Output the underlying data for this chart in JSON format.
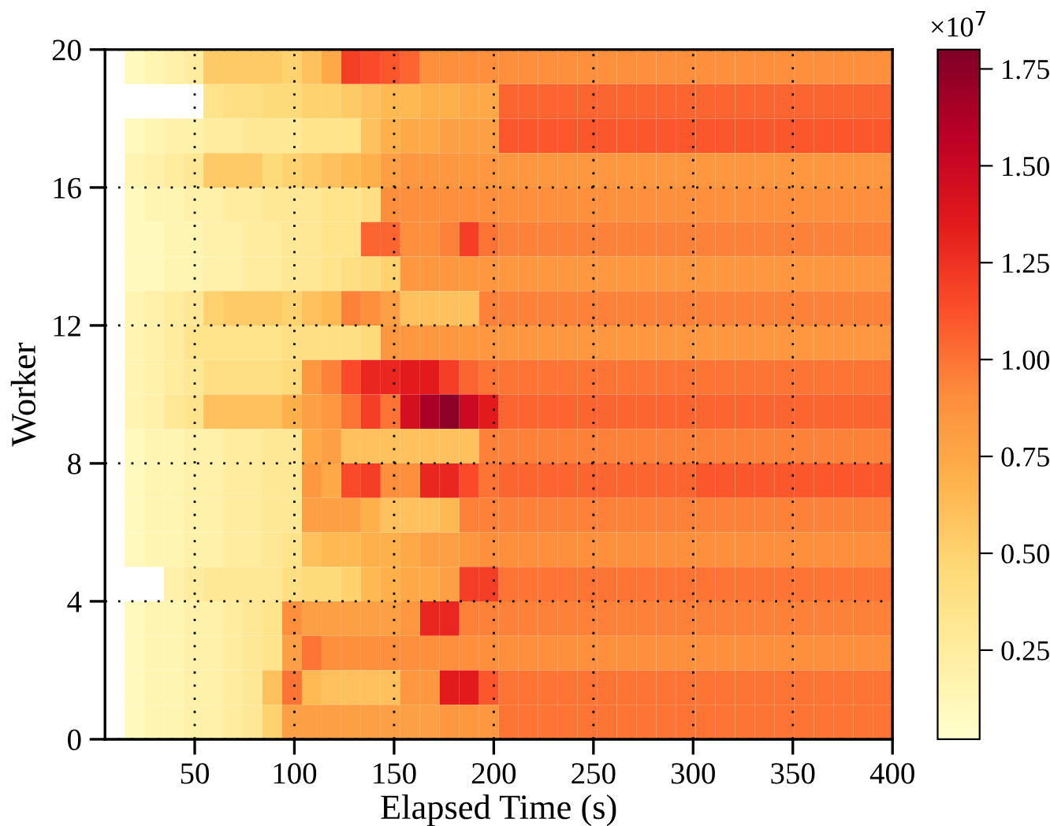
{
  "chart_data": {
    "type": "heatmap",
    "xlabel": "Elapsed Time (s)",
    "ylabel": "Worker",
    "clabel": "×10$^{7}$",
    "xlim": [
      5,
      400
    ],
    "xticks": [
      50,
      100,
      150,
      200,
      250,
      300,
      350,
      400
    ],
    "ylim": [
      0,
      20
    ],
    "yticks": [
      0,
      4,
      8,
      12,
      16,
      20
    ],
    "clim": [
      0.02,
      1.8
    ],
    "cticks": [
      0.25,
      {
        "value": 0.5,
        "label": "0.50"
      },
      0.75,
      {
        "value": 1.0,
        "label": "1.00"
      },
      1.25,
      {
        "value": 1.5,
        "label": "1.50"
      },
      1.75
    ],
    "grid": true,
    "cells": [
      [
        null,
        0.1,
        0.15,
        0.2,
        0.25,
        0.55,
        0.55,
        0.55,
        0.55,
        0.5,
        0.6,
        0.75,
        1.2,
        1.15,
        1.1,
        1.05,
        0.9,
        0.9,
        0.9,
        0.9,
        0.9,
        0.9,
        0.9,
        0.9,
        0.9,
        0.9,
        0.9,
        0.9,
        0.9,
        0.9,
        0.9,
        0.9,
        0.9,
        0.9,
        0.9,
        0.9,
        0.9,
        0.9,
        0.9,
        0.9
      ],
      [
        null,
        null,
        null,
        null,
        null,
        0.35,
        0.4,
        0.4,
        0.45,
        0.45,
        0.5,
        0.5,
        0.55,
        0.6,
        0.65,
        0.65,
        0.7,
        0.7,
        0.75,
        0.75,
        1.05,
        1.05,
        1.05,
        1.05,
        1.05,
        1.05,
        1.05,
        1.05,
        1.05,
        1.05,
        1.05,
        1.05,
        1.05,
        1.05,
        1.05,
        1.05,
        1.05,
        1.05,
        1.05,
        1.05
      ],
      [
        null,
        0.1,
        0.15,
        0.2,
        0.2,
        0.25,
        0.25,
        0.3,
        0.3,
        0.3,
        0.35,
        0.35,
        0.35,
        0.6,
        0.7,
        0.75,
        0.75,
        0.8,
        0.8,
        0.8,
        1.1,
        1.1,
        1.1,
        1.1,
        1.1,
        1.1,
        1.1,
        1.1,
        1.1,
        1.1,
        1.1,
        1.1,
        1.1,
        1.1,
        1.1,
        1.1,
        1.1,
        1.1,
        1.1,
        1.1
      ],
      [
        null,
        0.15,
        0.2,
        0.25,
        0.3,
        0.55,
        0.55,
        0.55,
        0.45,
        0.5,
        0.55,
        0.6,
        0.65,
        0.7,
        0.8,
        0.85,
        0.85,
        0.85,
        0.85,
        0.85,
        0.85,
        0.85,
        0.85,
        0.85,
        0.85,
        0.85,
        0.85,
        0.85,
        0.85,
        0.85,
        0.85,
        0.85,
        0.85,
        0.85,
        0.85,
        0.85,
        0.85,
        0.85,
        0.85,
        0.85
      ],
      [
        null,
        0.1,
        0.15,
        0.15,
        0.2,
        0.2,
        0.25,
        0.25,
        0.3,
        0.3,
        0.3,
        0.35,
        0.35,
        0.4,
        0.9,
        0.9,
        0.9,
        0.9,
        0.9,
        0.9,
        0.9,
        0.9,
        0.9,
        0.9,
        0.9,
        0.9,
        0.9,
        0.9,
        0.9,
        0.9,
        0.9,
        0.9,
        0.9,
        0.9,
        0.9,
        0.9,
        0.9,
        0.9,
        0.9,
        0.9
      ],
      [
        null,
        0.1,
        0.1,
        0.15,
        0.15,
        0.2,
        0.2,
        0.25,
        0.25,
        0.3,
        0.3,
        0.35,
        0.35,
        1.05,
        1.05,
        0.9,
        0.9,
        0.95,
        1.2,
        1.0,
        0.95,
        0.95,
        0.95,
        0.95,
        0.95,
        0.95,
        0.95,
        0.95,
        0.95,
        0.95,
        0.95,
        0.95,
        0.95,
        0.95,
        0.95,
        0.95,
        0.95,
        0.95,
        0.95,
        0.95
      ],
      [
        null,
        0.1,
        0.1,
        0.15,
        0.15,
        0.2,
        0.2,
        0.25,
        0.25,
        0.3,
        0.3,
        0.35,
        0.4,
        0.45,
        0.5,
        0.85,
        0.85,
        0.85,
        0.85,
        0.85,
        0.85,
        0.85,
        0.85,
        0.85,
        0.85,
        0.85,
        0.85,
        0.85,
        0.85,
        0.85,
        0.85,
        0.85,
        0.85,
        0.85,
        0.85,
        0.85,
        0.85,
        0.85,
        0.85,
        0.85
      ],
      [
        null,
        0.15,
        0.2,
        0.25,
        0.3,
        0.5,
        0.55,
        0.55,
        0.55,
        0.5,
        0.6,
        0.65,
        0.95,
        0.9,
        0.8,
        0.6,
        0.6,
        0.6,
        0.6,
        0.95,
        0.95,
        0.95,
        0.95,
        0.95,
        0.95,
        0.95,
        0.95,
        0.95,
        0.95,
        0.95,
        0.95,
        0.95,
        0.95,
        0.95,
        0.95,
        0.95,
        0.95,
        0.95,
        0.95,
        0.95
      ],
      [
        null,
        0.15,
        0.2,
        0.25,
        0.35,
        0.35,
        0.35,
        0.35,
        0.35,
        0.4,
        0.4,
        0.4,
        0.4,
        0.45,
        0.85,
        0.85,
        0.85,
        0.85,
        0.85,
        0.85,
        0.85,
        0.85,
        0.85,
        0.85,
        0.85,
        0.85,
        0.85,
        0.85,
        0.85,
        0.85,
        0.85,
        0.85,
        0.85,
        0.85,
        0.85,
        0.85,
        0.85,
        0.85,
        0.85,
        0.85
      ],
      [
        null,
        0.15,
        0.2,
        0.25,
        0.3,
        0.4,
        0.4,
        0.4,
        0.4,
        0.45,
        0.85,
        0.95,
        1.15,
        1.3,
        1.3,
        1.35,
        1.35,
        1.2,
        1.05,
        1.0,
        1.0,
        1.0,
        1.0,
        1.0,
        1.0,
        1.0,
        1.0,
        1.0,
        1.0,
        1.0,
        1.0,
        1.0,
        1.0,
        1.0,
        1.0,
        1.0,
        1.0,
        1.0,
        1.0,
        1.0
      ],
      [
        null,
        0.15,
        0.2,
        0.3,
        0.35,
        0.6,
        0.6,
        0.6,
        0.6,
        0.7,
        0.8,
        0.85,
        1.0,
        1.2,
        1.0,
        1.45,
        1.65,
        1.75,
        1.5,
        1.35,
        1.05,
        1.05,
        1.05,
        1.05,
        1.05,
        1.05,
        1.05,
        1.05,
        1.05,
        1.05,
        1.05,
        1.05,
        1.05,
        1.05,
        1.05,
        1.05,
        1.05,
        1.05,
        1.05,
        1.05
      ],
      [
        null,
        0.1,
        0.15,
        0.15,
        0.2,
        0.2,
        0.25,
        0.25,
        0.3,
        0.3,
        0.75,
        0.8,
        0.6,
        0.6,
        0.6,
        0.6,
        0.6,
        0.6,
        0.6,
        0.95,
        0.95,
        0.95,
        0.95,
        0.95,
        0.95,
        0.95,
        0.95,
        0.95,
        0.95,
        0.95,
        0.95,
        0.95,
        0.95,
        0.95,
        0.95,
        0.95,
        0.95,
        0.95,
        0.95,
        0.95
      ],
      [
        null,
        0.1,
        0.15,
        0.15,
        0.2,
        0.2,
        0.25,
        0.25,
        0.3,
        0.3,
        0.85,
        0.75,
        1.15,
        1.2,
        0.9,
        0.9,
        1.3,
        1.3,
        1.15,
        1.0,
        1.05,
        1.05,
        1.05,
        1.05,
        1.05,
        1.05,
        1.05,
        1.05,
        1.05,
        1.05,
        1.1,
        1.1,
        1.1,
        1.1,
        1.1,
        1.1,
        1.1,
        1.1,
        1.1,
        1.1
      ],
      [
        null,
        0.1,
        0.15,
        0.15,
        0.2,
        0.2,
        0.25,
        0.25,
        0.3,
        0.3,
        0.8,
        0.8,
        0.8,
        0.7,
        0.6,
        0.6,
        0.6,
        0.65,
        0.95,
        0.95,
        0.95,
        0.95,
        0.95,
        0.95,
        0.95,
        0.95,
        0.95,
        0.95,
        0.95,
        0.95,
        0.95,
        0.95,
        0.95,
        0.95,
        0.95,
        0.95,
        0.95,
        0.95,
        0.95,
        0.95
      ],
      [
        null,
        0.1,
        0.15,
        0.15,
        0.2,
        0.2,
        0.25,
        0.25,
        0.3,
        0.35,
        0.6,
        0.65,
        0.65,
        0.7,
        0.7,
        0.75,
        0.8,
        0.8,
        0.85,
        0.9,
        0.9,
        0.9,
        0.9,
        0.9,
        0.9,
        0.9,
        0.9,
        0.9,
        0.9,
        0.9,
        0.9,
        0.9,
        0.9,
        0.9,
        0.9,
        0.9,
        0.9,
        0.9,
        0.9,
        0.9
      ],
      [
        null,
        null,
        null,
        0.2,
        0.25,
        0.3,
        0.3,
        0.3,
        0.3,
        0.4,
        0.45,
        0.45,
        0.5,
        0.65,
        0.7,
        0.75,
        0.75,
        0.8,
        1.2,
        1.2,
        1.0,
        1.0,
        1.0,
        1.0,
        1.0,
        1.0,
        1.0,
        1.0,
        1.0,
        1.0,
        1.0,
        1.0,
        1.0,
        1.0,
        1.0,
        1.0,
        1.0,
        1.0,
        1.0,
        1.0
      ],
      [
        null,
        0.1,
        0.15,
        0.15,
        0.2,
        0.2,
        0.25,
        0.3,
        0.35,
        0.9,
        0.8,
        0.8,
        0.8,
        0.8,
        0.8,
        0.85,
        1.3,
        1.3,
        0.95,
        0.95,
        0.95,
        0.95,
        0.95,
        0.95,
        0.95,
        0.95,
        0.95,
        0.95,
        0.95,
        0.95,
        0.95,
        0.95,
        0.95,
        0.95,
        0.95,
        0.95,
        0.95,
        0.95,
        0.95,
        0.95
      ],
      [
        null,
        0.1,
        0.15,
        0.15,
        0.2,
        0.2,
        0.25,
        0.3,
        0.35,
        0.8,
        1.0,
        0.9,
        0.9,
        0.9,
        0.9,
        0.9,
        0.9,
        0.9,
        0.9,
        0.9,
        0.9,
        0.9,
        0.9,
        0.9,
        0.9,
        0.9,
        0.9,
        0.9,
        0.9,
        0.9,
        0.9,
        0.9,
        0.9,
        0.9,
        0.9,
        0.9,
        0.9,
        0.9,
        0.9,
        0.9
      ],
      [
        null,
        0.1,
        0.15,
        0.15,
        0.2,
        0.2,
        0.25,
        0.3,
        0.6,
        1.0,
        0.65,
        0.6,
        0.6,
        0.6,
        0.6,
        0.85,
        0.85,
        1.35,
        1.35,
        1.1,
        1.0,
        1.0,
        1.0,
        1.0,
        1.0,
        1.0,
        1.0,
        1.0,
        1.0,
        1.0,
        1.0,
        1.0,
        1.0,
        1.0,
        1.0,
        1.0,
        1.0,
        1.0,
        1.0,
        1.0
      ],
      [
        null,
        0.1,
        0.15,
        0.15,
        0.2,
        0.2,
        0.25,
        0.3,
        0.5,
        0.8,
        0.8,
        0.8,
        0.8,
        0.8,
        0.8,
        0.8,
        0.8,
        0.85,
        0.85,
        0.85,
        1.0,
        1.0,
        1.0,
        1.0,
        1.0,
        1.0,
        1.0,
        1.0,
        1.0,
        1.0,
        1.0,
        1.0,
        1.0,
        1.0,
        1.0,
        1.0,
        1.0,
        1.0,
        1.0,
        1.0
      ]
    ]
  }
}
